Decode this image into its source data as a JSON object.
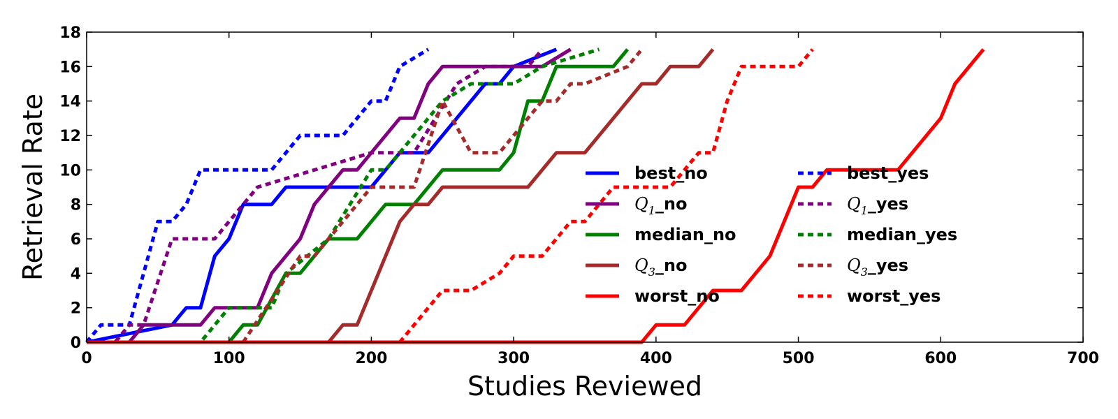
{
  "chart_data": {
    "type": "line",
    "xlabel": "Studies Reviewed",
    "ylabel": "Retrieval Rate",
    "xlim": [
      0,
      700
    ],
    "ylim": [
      0,
      18
    ],
    "xticks": [
      0,
      100,
      200,
      300,
      400,
      500,
      600,
      700
    ],
    "yticks": [
      0,
      2,
      4,
      6,
      8,
      10,
      12,
      14,
      16,
      18
    ],
    "grid": false,
    "legend": {
      "placement": "center-right",
      "columns": 2
    },
    "series": [
      {
        "name": "best_no",
        "name_parts": [
          "best",
          "_no"
        ],
        "color": "#0000ff",
        "dash": "solid",
        "x": [
          0,
          60,
          70,
          80,
          90,
          100,
          110,
          130,
          140,
          190,
          200,
          220,
          240,
          280,
          290,
          300,
          330
        ],
        "y": [
          0,
          1,
          2,
          2,
          5,
          6,
          8,
          8,
          9,
          9,
          9,
          11,
          11,
          15,
          15,
          16,
          17
        ]
      },
      {
        "name": "Q1_no",
        "name_parts": [
          "Q",
          "1",
          "_no"
        ],
        "color": "#800080",
        "dash": "solid",
        "x": [
          0,
          30,
          40,
          80,
          90,
          120,
          130,
          150,
          160,
          170,
          180,
          190,
          220,
          230,
          240,
          250,
          320,
          340
        ],
        "y": [
          0,
          0,
          1,
          1,
          2,
          2,
          4,
          6,
          8,
          9,
          10,
          10,
          13,
          13,
          15,
          16,
          16,
          17
        ]
      },
      {
        "name": "median_no",
        "name_parts": [
          "median",
          "_no"
        ],
        "color": "#008000",
        "dash": "solid",
        "x": [
          0,
          100,
          110,
          120,
          140,
          150,
          170,
          190,
          210,
          230,
          250,
          290,
          300,
          310,
          320,
          330,
          370,
          380
        ],
        "y": [
          0,
          0,
          1,
          1,
          4,
          4,
          6,
          6,
          8,
          8,
          10,
          10,
          11,
          14,
          14,
          16,
          16,
          17
        ]
      },
      {
        "name": "Q3_no",
        "name_parts": [
          "Q",
          "3",
          "_no"
        ],
        "color": "#a52a2a",
        "dash": "solid",
        "x": [
          0,
          170,
          180,
          190,
          220,
          230,
          240,
          250,
          310,
          330,
          350,
          390,
          400,
          410,
          430,
          440
        ],
        "y": [
          0,
          0,
          1,
          1,
          7,
          8,
          8,
          9,
          9,
          11,
          11,
          15,
          15,
          16,
          16,
          17
        ]
      },
      {
        "name": "worst_no",
        "name_parts": [
          "worst",
          "_no"
        ],
        "color": "#ff0000",
        "dash": "solid",
        "x": [
          0,
          390,
          400,
          420,
          440,
          450,
          460,
          480,
          500,
          510,
          520,
          570,
          600,
          610,
          630
        ],
        "y": [
          0,
          0,
          1,
          1,
          3,
          3,
          3,
          5,
          9,
          9,
          10,
          10,
          13,
          15,
          17
        ]
      },
      {
        "name": "best_yes",
        "name_parts": [
          "best",
          "_yes"
        ],
        "color": "#0000ff",
        "dash": "dotted",
        "x": [
          0,
          10,
          30,
          40,
          50,
          60,
          70,
          80,
          130,
          150,
          180,
          200,
          210,
          220,
          240
        ],
        "y": [
          0,
          1,
          1,
          4,
          7,
          7,
          8,
          10,
          10,
          12,
          12,
          14,
          14,
          16,
          17
        ]
      },
      {
        "name": "Q1_yes",
        "name_parts": [
          "Q",
          "1",
          "_yes"
        ],
        "color": "#800080",
        "dash": "dotted",
        "x": [
          0,
          20,
          30,
          40,
          60,
          90,
          120,
          200,
          230,
          260,
          280,
          310,
          320
        ],
        "y": [
          0,
          0,
          1,
          1,
          6,
          6,
          9,
          11,
          11,
          15,
          16,
          16,
          17
        ]
      },
      {
        "name": "median_yes",
        "name_parts": [
          "median",
          "_yes"
        ],
        "color": "#008000",
        "dash": "dotted",
        "x": [
          0,
          80,
          100,
          130,
          140,
          170,
          200,
          210,
          230,
          250,
          270,
          300,
          320,
          360
        ],
        "y": [
          0,
          0,
          2,
          2,
          4,
          6,
          10,
          10,
          12,
          14,
          15,
          15,
          16,
          17
        ]
      },
      {
        "name": "Q3_yes",
        "name_parts": [
          "Q",
          "3",
          "_yes"
        ],
        "color": "#a52a2a",
        "dash": "dotted",
        "x": [
          0,
          110,
          150,
          160,
          200,
          230,
          250,
          270,
          290,
          320,
          330,
          340,
          350,
          380,
          390
        ],
        "y": [
          0,
          0,
          5,
          5,
          9,
          9,
          14,
          11,
          11,
          14,
          14,
          15,
          15,
          16,
          17
        ]
      },
      {
        "name": "worst_yes",
        "name_parts": [
          "worst",
          "_yes"
        ],
        "color": "#ff0000",
        "dash": "dotted",
        "x": [
          0,
          220,
          250,
          260,
          270,
          290,
          300,
          320,
          340,
          350,
          370,
          390,
          410,
          430,
          440,
          450,
          460,
          500,
          510
        ],
        "y": [
          0,
          0,
          3,
          3,
          3,
          4,
          5,
          5,
          7,
          7,
          9,
          9,
          9,
          11,
          11,
          14,
          16,
          16,
          17
        ]
      }
    ]
  }
}
